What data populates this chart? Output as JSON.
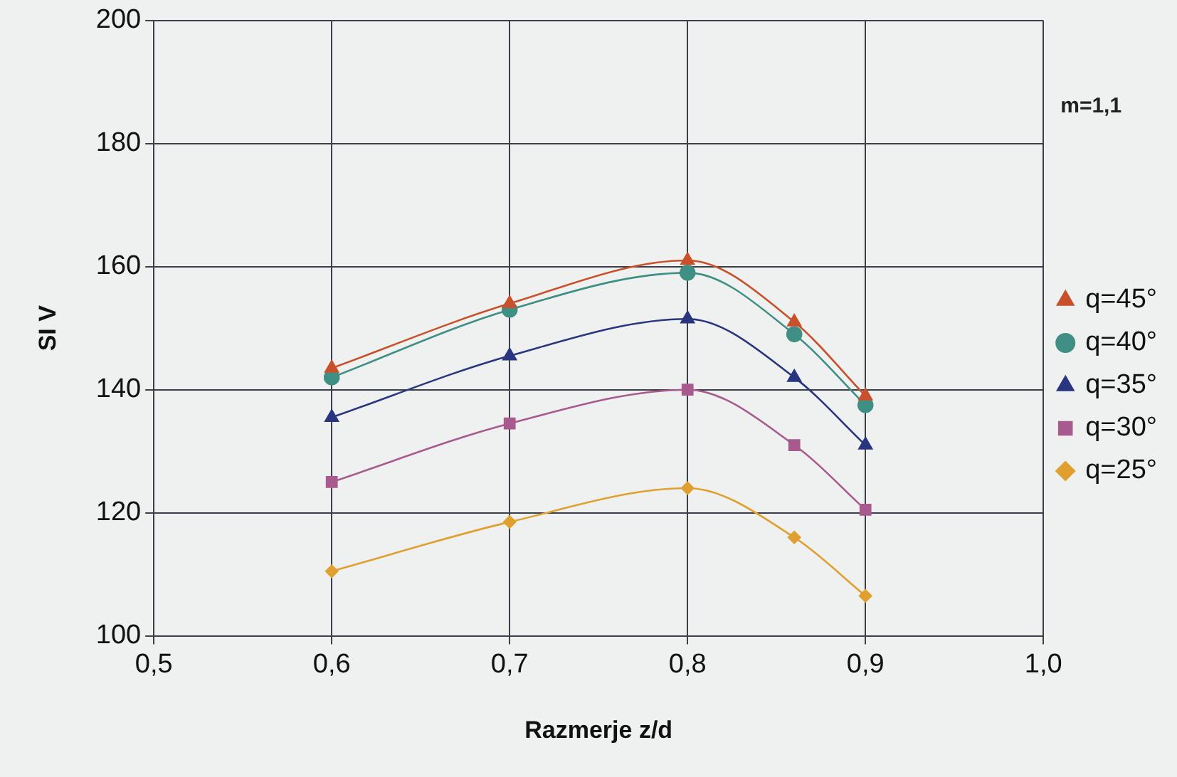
{
  "chart_data": {
    "type": "line",
    "xlabel": "Razmerje z/d",
    "ylabel": "SI V",
    "annotations": [
      "m=1,1"
    ],
    "x": [
      0.6,
      0.7,
      0.8,
      0.86,
      0.9
    ],
    "xlim": [
      0.5,
      1.0
    ],
    "xticks": [
      {
        "value": 0.5,
        "label": "0,5"
      },
      {
        "value": 0.6,
        "label": "0,6"
      },
      {
        "value": 0.7,
        "label": "0,7"
      },
      {
        "value": 0.8,
        "label": "0,8"
      },
      {
        "value": 0.9,
        "label": "0,9"
      },
      {
        "value": 1.0,
        "label": "1,0"
      }
    ],
    "ylim": [
      100,
      200
    ],
    "yticks": [
      100,
      120,
      140,
      160,
      180,
      200
    ],
    "grid": true,
    "legend": "right",
    "series": [
      {
        "name": "q=45°",
        "color": "#c8502a",
        "marker": "triangle",
        "values": [
          143.5,
          154,
          161,
          151,
          139
        ]
      },
      {
        "name": "q=40°",
        "color": "#3f8f84",
        "marker": "circle",
        "values": [
          142,
          153,
          159,
          149,
          137.5
        ]
      },
      {
        "name": "q=35°",
        "color": "#2a3580",
        "marker": "triangle",
        "values": [
          135.5,
          145.5,
          151.5,
          142,
          131
        ]
      },
      {
        "name": "q=30°",
        "color": "#a85a8e",
        "marker": "square",
        "values": [
          125,
          134.5,
          140,
          131,
          120.5
        ]
      },
      {
        "name": "q=25°",
        "color": "#e0a030",
        "marker": "diamond",
        "values": [
          110.5,
          118.5,
          124,
          116,
          106.5
        ]
      }
    ]
  }
}
